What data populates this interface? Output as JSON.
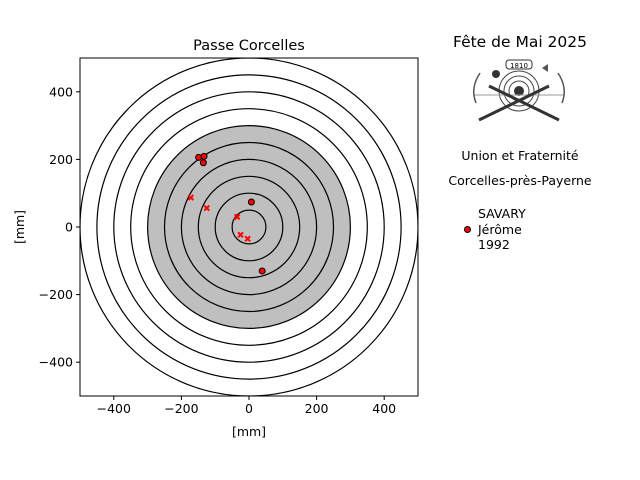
{
  "chart_data": {
    "type": "scatter",
    "title": "Passe Corcelles",
    "xlabel": "[mm]",
    "ylabel": "[mm]",
    "xlim": [
      -500,
      500
    ],
    "ylim": [
      -500,
      500
    ],
    "xticks": [
      -400,
      -200,
      0,
      200,
      400
    ],
    "yticks": [
      -400,
      -200,
      0,
      200,
      400
    ],
    "xtick_labels": [
      "−400",
      "−200",
      "0",
      "200",
      "400"
    ],
    "ytick_labels": [
      "−400",
      "−200",
      "0",
      "200",
      "400"
    ],
    "grid": false,
    "target": {
      "ring_radii": [
        50,
        100,
        150,
        200,
        250,
        300,
        350,
        400,
        450,
        500
      ],
      "black_radius": 300,
      "black_color": "#bfbfbf",
      "ring_color": "#000000"
    },
    "series": [
      {
        "name": "SAVARY\nJérôme\n1992",
        "marker": "circle",
        "color": "#ff0000",
        "edge": "#000000",
        "points": [
          [
            -149,
            206
          ],
          [
            -133,
            209
          ],
          [
            -135,
            190
          ],
          [
            7,
            74
          ],
          [
            39,
            -130
          ]
        ]
      },
      {
        "marker": "x",
        "color": "#ff0000",
        "points": [
          [
            -172,
            87
          ],
          [
            -125,
            56
          ],
          [
            -35,
            30
          ],
          [
            -25,
            -23
          ],
          [
            -4,
            -35
          ]
        ]
      }
    ],
    "legend": {
      "placement": "right",
      "lines": [
        "SAVARY",
        "Jérôme",
        "1992"
      ]
    }
  },
  "side": {
    "title": "Fête de Mai 2025",
    "logo_text": "1810",
    "line1": "Union et Fraternité",
    "line2": "Corcelles-près-Payerne"
  }
}
